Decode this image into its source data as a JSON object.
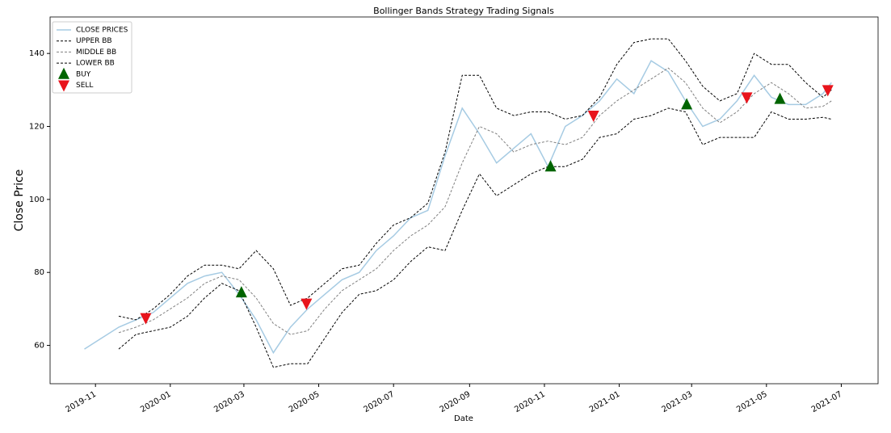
{
  "chart_data": {
    "type": "line",
    "title": "Bollinger Bands Strategy Trading Signals",
    "x_label": "Date",
    "y_label": "Close Price",
    "xlim": [
      "2019-09-25",
      "2021-07-31"
    ],
    "xticks": [
      {
        "value": "2019-11-01",
        "label": "2019-11"
      },
      {
        "value": "2020-01-01",
        "label": "2020-01"
      },
      {
        "value": "2020-03-01",
        "label": "2020-03"
      },
      {
        "value": "2020-05-01",
        "label": "2020-05"
      },
      {
        "value": "2020-07-01",
        "label": "2020-07"
      },
      {
        "value": "2020-09-01",
        "label": "2020-09"
      },
      {
        "value": "2020-11-01",
        "label": "2020-11"
      },
      {
        "value": "2021-01-01",
        "label": "2021-01"
      },
      {
        "value": "2021-03-01",
        "label": "2021-03"
      },
      {
        "value": "2021-05-01",
        "label": "2021-05"
      },
      {
        "value": "2021-07-01",
        "label": "2021-07"
      }
    ],
    "ylim": [
      49.5,
      150
    ],
    "yticks": [
      60,
      80,
      100,
      120,
      140
    ],
    "grid": false,
    "legend": "upper left",
    "x": [
      "2019-10-23",
      "2019-11-06",
      "2019-11-20",
      "2019-12-04",
      "2019-12-18",
      "2020-01-01",
      "2020-01-15",
      "2020-01-29",
      "2020-02-12",
      "2020-02-26",
      "2020-03-11",
      "2020-03-25",
      "2020-04-08",
      "2020-04-22",
      "2020-05-06",
      "2020-05-20",
      "2020-06-03",
      "2020-06-17",
      "2020-07-01",
      "2020-07-15",
      "2020-07-29",
      "2020-08-12",
      "2020-08-26",
      "2020-09-09",
      "2020-09-23",
      "2020-10-07",
      "2020-10-21",
      "2020-11-04",
      "2020-11-18",
      "2020-12-02",
      "2020-12-16",
      "2020-12-30",
      "2021-01-13",
      "2021-01-27",
      "2021-02-10",
      "2021-02-24",
      "2021-03-10",
      "2021-03-24",
      "2021-04-07",
      "2021-04-21",
      "2021-05-05",
      "2021-05-19",
      "2021-06-02",
      "2021-06-16",
      "2021-06-23"
    ],
    "series": [
      {
        "name": "CLOSE PRICES",
        "color": "#a6cbe3",
        "linestyle": "solid",
        "values": [
          59,
          62,
          65,
          67,
          69,
          73,
          77,
          79,
          80,
          74,
          67,
          58,
          65,
          70,
          74,
          78,
          80,
          86,
          90,
          95,
          97,
          112,
          125,
          118,
          110,
          114,
          118,
          109,
          120,
          123,
          127,
          133,
          129,
          138,
          135,
          127,
          120,
          122,
          127,
          134,
          128,
          126,
          126,
          129,
          132
        ]
      },
      {
        "name": "UPPER BB",
        "color": "#000000",
        "linestyle": "dashed",
        "values": [
          null,
          null,
          68,
          67,
          70,
          74,
          79,
          82,
          82,
          81,
          86,
          81,
          71,
          73,
          77,
          81,
          82,
          88,
          93,
          95,
          99,
          113,
          134,
          134,
          125,
          123,
          124,
          124,
          122,
          123,
          128,
          137,
          143,
          144,
          144,
          138,
          131,
          127,
          129,
          140,
          137,
          137,
          132,
          128,
          130
        ]
      },
      {
        "name": "MIDDLE BB",
        "color": "#808080",
        "linestyle": "dashed",
        "values": [
          null,
          null,
          63.5,
          65,
          67,
          70,
          73,
          77,
          79,
          78,
          73,
          66,
          63,
          64,
          70,
          75,
          78,
          81,
          86,
          90,
          93,
          98,
          110,
          120,
          118,
          113,
          115,
          116,
          115,
          117,
          123,
          127,
          130,
          133,
          136,
          132,
          125,
          121,
          124,
          129,
          132,
          129,
          125,
          125.5,
          127
        ]
      },
      {
        "name": "LOWER BB",
        "color": "#000000",
        "linestyle": "dashed",
        "values": [
          null,
          null,
          59,
          63,
          64,
          65,
          68,
          73,
          77,
          75,
          65,
          54,
          55,
          55,
          62,
          69,
          74,
          75,
          78,
          83,
          87,
          86,
          97,
          107,
          101,
          104,
          107,
          109,
          109,
          111,
          117,
          118,
          122,
          123,
          125,
          124,
          115,
          117,
          117,
          117,
          124,
          122,
          122,
          122.5,
          122
        ]
      },
      {
        "name": "BUY",
        "color": "#006400",
        "marker": "triangle-up",
        "x": [
          "2020-02-28",
          "2020-11-06",
          "2021-02-25",
          "2021-05-12"
        ],
        "values": [
          74.5,
          109,
          126,
          127.5
        ]
      },
      {
        "name": "SELL",
        "color": "#e8141c",
        "marker": "triangle-down",
        "x": [
          "2019-12-12",
          "2020-04-21",
          "2020-12-11",
          "2021-04-15",
          "2021-06-20"
        ],
        "values": [
          67.5,
          71.5,
          123,
          128,
          130
        ]
      }
    ]
  }
}
